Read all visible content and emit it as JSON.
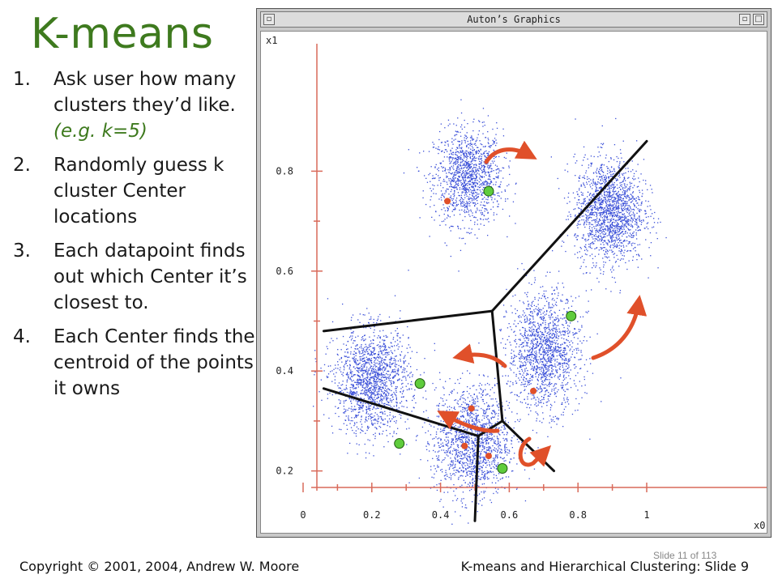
{
  "slide": {
    "title": "K-means",
    "steps": [
      {
        "num": "1.",
        "text": "Ask user how many clusters they’d like.",
        "example": "(e.g. k=5)"
      },
      {
        "num": "2.",
        "text": "Randomly guess k cluster Center locations"
      },
      {
        "num": "3.",
        "text": "Each datapoint finds out which Center it’s closest to."
      },
      {
        "num": "4.",
        "text": "Each Center finds the centroid of the points it owns"
      }
    ]
  },
  "window": {
    "title": "Auton’s Graphics",
    "minimize_label": "▫",
    "close_label": "□"
  },
  "footer": {
    "copyright": "Copyright © 2001, 2004, Andrew W. Moore",
    "course": "K-means and Hierarchical Clustering: Slide 9",
    "slide_counter": "Slide 11 of 113"
  },
  "colors": {
    "title_green": "#3e7a1e",
    "points_blue": "#3a4fd8",
    "axis_red": "#d96a5a",
    "arrow_orange": "#e0502a",
    "center_green": "#5fcc3c",
    "boundary_black": "#111111"
  },
  "chart_data": {
    "type": "scatter",
    "xlabel": "x0",
    "ylabel": "x1",
    "xlim": [
      0,
      1.05
    ],
    "ylim": [
      0.08,
      0.92
    ],
    "x_ticks": [
      "0",
      "0.2",
      "0.4",
      "0.6",
      "0.8",
      "1"
    ],
    "y_ticks": [
      "0.2",
      "0.4",
      "0.6",
      "0.8"
    ],
    "clusters": [
      {
        "cx": 0.48,
        "cy": 0.79,
        "sx": 0.05,
        "sy": 0.047,
        "n": 1300
      },
      {
        "cx": 0.89,
        "cy": 0.72,
        "sx": 0.05,
        "sy": 0.052,
        "n": 1700
      },
      {
        "cx": 0.7,
        "cy": 0.44,
        "sx": 0.052,
        "sy": 0.058,
        "n": 1500
      },
      {
        "cx": 0.2,
        "cy": 0.38,
        "sx": 0.055,
        "sy": 0.052,
        "n": 1600
      },
      {
        "cx": 0.49,
        "cy": 0.26,
        "sx": 0.055,
        "sy": 0.055,
        "n": 1500
      }
    ],
    "old_centers": [
      {
        "x": 0.42,
        "y": 0.74
      },
      {
        "x": 0.49,
        "y": 0.325
      },
      {
        "x": 0.47,
        "y": 0.25
      },
      {
        "x": 0.54,
        "y": 0.23
      },
      {
        "x": 0.67,
        "y": 0.36
      }
    ],
    "new_centers": [
      {
        "x": 0.54,
        "y": 0.76
      },
      {
        "x": 0.34,
        "y": 0.375
      },
      {
        "x": 0.28,
        "y": 0.255
      },
      {
        "x": 0.58,
        "y": 0.205
      },
      {
        "x": 0.78,
        "y": 0.51
      }
    ],
    "boundaries": [
      [
        [
          0.06,
          0.48
        ],
        [
          0.55,
          0.52
        ]
      ],
      [
        [
          0.55,
          0.52
        ],
        [
          1.0,
          0.86
        ]
      ],
      [
        [
          0.55,
          0.52
        ],
        [
          0.58,
          0.3
        ]
      ],
      [
        [
          0.06,
          0.365
        ],
        [
          0.51,
          0.27
        ]
      ],
      [
        [
          0.51,
          0.27
        ],
        [
          0.58,
          0.3
        ]
      ],
      [
        [
          0.51,
          0.27
        ],
        [
          0.5,
          0.1
        ]
      ],
      [
        [
          0.58,
          0.3
        ],
        [
          0.73,
          0.2
        ]
      ]
    ]
  }
}
